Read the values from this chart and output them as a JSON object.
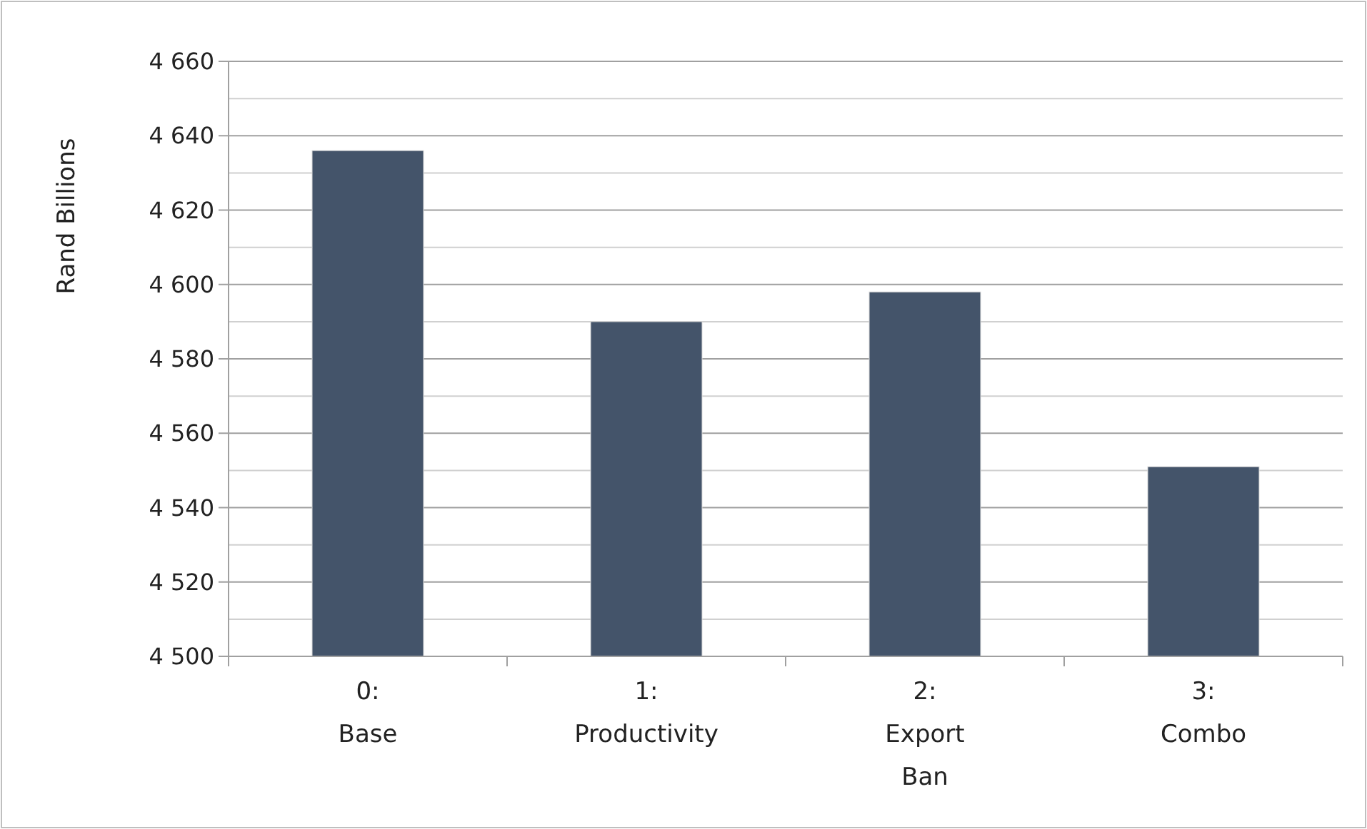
{
  "chart_data": {
    "type": "bar",
    "ylabel": "Rand Billions",
    "categories": [
      "0: Base",
      "1: Productivity",
      "2: Export Ban",
      "3: Combo"
    ],
    "values": [
      4636,
      4590,
      4598,
      4551
    ],
    "color": "#44546a",
    "ylim": [
      4500,
      4660
    ],
    "yticks": [
      4500,
      {
        "value": 4510,
        "label": null
      },
      {
        "value": 4520,
        "label": "4 520"
      },
      {
        "value": 4530,
        "label": null
      },
      {
        "value": 4540,
        "label": "4 540"
      },
      {
        "value": 4550,
        "label": null
      },
      {
        "value": 4560,
        "label": "4 560"
      },
      {
        "value": 4570,
        "label": null
      },
      {
        "value": 4580,
        "label": "4 580"
      },
      {
        "value": 4590,
        "label": null
      },
      {
        "value": 4600,
        "label": "4 600"
      },
      {
        "value": 4610,
        "label": null
      },
      {
        "value": 4620,
        "label": "4 620"
      },
      {
        "value": 4630,
        "label": null
      },
      {
        "value": 4640,
        "label": "4 640"
      },
      {
        "value": 4650,
        "label": null
      },
      {
        "value": 4660,
        "label": "4 660"
      }
    ],
    "grid": true
  }
}
